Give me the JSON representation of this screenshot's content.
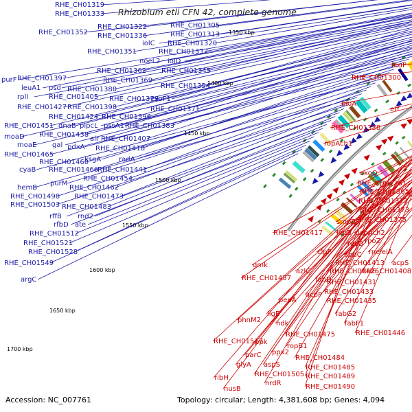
{
  "title": "Rhizobium etli CFN 42, complete genome",
  "accession": "Accession: NC_007761",
  "topology": "Topology: circular; Length: 4,381,608 bp; Genes: 4,094",
  "kbp_ticks": [
    "1350 kbp",
    "1400 kbp",
    "1450 kbp",
    "1500 kbp",
    "1550 kbp",
    "1600 kbp",
    "1650 kbp",
    "1700 kbp"
  ],
  "colors": {
    "forward": "#1a1aa8",
    "reverse": "#cc0000",
    "backbone": "#888888",
    "gc": "#2e8b2e"
  },
  "left_labels": [
    "RHE_CH01319",
    "RHE_CH01333",
    "RHE_CH01322",
    "RHE_CH01305",
    "RHE_CH01352",
    "RHE_CH01336",
    "RHE_CH01313",
    "iolC",
    "RHE_CH01320",
    "RHE_CH01351",
    "RHE_CH01332",
    "noeL2",
    "iolD",
    "RHE_CH01362",
    "RHE_CH01345",
    "RHE_CH01369",
    "RHE_CH01354",
    "purF",
    "RHE_CH01397",
    "leuA1",
    "psd",
    "RHE_CH01380",
    "rplI",
    "RHE_CH01405",
    "RHE_CH01379",
    "exoF1",
    "RHE_CH01427",
    "RHE_CH01398",
    "RHE_CH01371",
    "RHE_CH01424",
    "RHE_CH01396",
    "RHE_CH01451",
    "dnaB",
    "pipcL",
    "pssA1",
    "RHE_CH01383",
    "moaD",
    "RHE_CH01438",
    "alr",
    "RHE_CH01407",
    "moaE",
    "gal",
    "pdxA",
    "RHE_CH01418",
    "RHE_CH01465",
    "ksgA",
    "radA",
    "RHE_CH01460",
    "cyaB",
    "RHE_CH01466",
    "RHE_CH01441",
    "purM",
    "RHE_CH01454",
    "hemB",
    "RHE_CH01462",
    "RHE_CH01498",
    "RHE_CH01473",
    "RHE_CH01503",
    "RHE_CH01483",
    "rffB",
    "rnd2",
    "rfbD",
    "ate",
    "RHE_CH01512",
    "RHE_CH01521",
    "RHE_CH01528",
    "RHE_CH01549",
    "argC"
  ],
  "right_labels": [
    "feuP",
    "RHE_CH01300",
    "etf",
    "bioA",
    "RHE_CH01338",
    "ropAch1",
    "exoQ",
    "RHE_CH01361",
    "RHE_CH01365",
    "RHE_CH01372",
    "RHE_CH01373",
    "RHE_CH01375",
    "smpB",
    "RHE_CH01417",
    "lepB",
    "dapAch2",
    "recO",
    "rpoZ",
    "clpP",
    "sodC",
    "rnc",
    "relA",
    "RHE_CH01413",
    "acpS",
    "gmk",
    "RHE_CH01426",
    "RHE_CH01408",
    "azlC",
    "RHE_CH01457",
    "fabD",
    "RHE_CH01431",
    "acpP",
    "RHE_CH01433",
    "pepA",
    "RHE_CH01435",
    "ligE",
    "fabG2",
    "phnM2",
    "ndk",
    "fabF1",
    "RHE_CH01446",
    "RHE_CH01475",
    "RHE_CH01517",
    "ppk",
    "ropB1",
    "parC",
    "ppx2",
    "RHE_CH01484",
    "glyA",
    "aspS",
    "RHE_CH01485",
    "RHE_CH01505",
    "RHE_CH01489",
    "ribH",
    "nrdR",
    "RHE_CH01490",
    "nusB"
  ]
}
